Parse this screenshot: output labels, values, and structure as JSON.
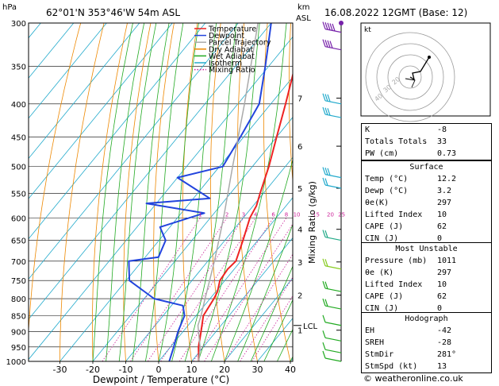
{
  "header": {
    "hpa_label": "hPa",
    "location": "62°01'N  353°46'W  54m  ASL",
    "km_label": "km",
    "asl_label": "ASL",
    "datetime": "16.08.2022  12GMT  (Base: 12)"
  },
  "legend": [
    {
      "label": "Temperature",
      "color": "#ee2222"
    },
    {
      "label": "Dewpoint",
      "color": "#2244dd"
    },
    {
      "label": "Parcel Trajectory",
      "color": "#aaaaaa"
    },
    {
      "label": "Dry Adiabat",
      "color": "#ee8800"
    },
    {
      "label": "Wet Adiabat",
      "color": "#22aa22"
    },
    {
      "label": "Isotherm",
      "color": "#22aacc"
    },
    {
      "label": "Mixing Ratio",
      "color": "#cc2299"
    }
  ],
  "colors": {
    "temperature": "#ee2222",
    "dewpoint": "#2244dd",
    "parcel": "#aaaaaa",
    "dry_adiabat": "#ee8800",
    "wet_adiabat": "#22aa22",
    "isotherm": "#22aacc",
    "mixing_ratio": "#cc2299"
  },
  "chart_data": {
    "type": "line",
    "subtype": "skew-T log-P diagram",
    "xlabel": "Dewpoint / Temperature (°C)",
    "ylabel_right": "Mixing Ratio (g/kg)",
    "x_ticks": [
      -30,
      -20,
      -10,
      0,
      10,
      20,
      30,
      40
    ],
    "pressure_ticks": [
      300,
      350,
      400,
      450,
      500,
      550,
      600,
      650,
      700,
      750,
      800,
      850,
      900,
      950,
      1000
    ],
    "km_ticks": [
      {
        "label": "7",
        "p": 392
      },
      {
        "label": "6",
        "p": 465
      },
      {
        "label": "5",
        "p": 540
      },
      {
        "label": "4",
        "p": 625
      },
      {
        "label": "3",
        "p": 702
      },
      {
        "label": "2",
        "p": 790
      },
      {
        "label": "1",
        "p": 895
      }
    ],
    "lcl": {
      "label": "LCL",
      "p": 880
    },
    "mixing_ratio_labels": [
      "1",
      "2",
      "3",
      "4",
      "6",
      "8",
      "10",
      "15",
      "20",
      "25"
    ],
    "series": [
      {
        "name": "Temperature",
        "points": [
          [
            1000,
            12.2
          ],
          [
            950,
            8.5
          ],
          [
            900,
            5.5
          ],
          [
            850,
            2.2
          ],
          [
            800,
            1.2
          ],
          [
            780,
            0.5
          ],
          [
            750,
            -1.5
          ],
          [
            720,
            -2.0
          ],
          [
            700,
            -1.5
          ],
          [
            650,
            -4.5
          ],
          [
            600,
            -8.0
          ],
          [
            575,
            -9.0
          ],
          [
            550,
            -11.0
          ],
          [
            500,
            -15.0
          ],
          [
            450,
            -20.0
          ],
          [
            400,
            -25.5
          ],
          [
            350,
            -32.0
          ],
          [
            300,
            -40.0
          ]
        ]
      },
      {
        "name": "Dewpoint",
        "points": [
          [
            1000,
            3.2
          ],
          [
            950,
            1.0
          ],
          [
            900,
            -1.5
          ],
          [
            850,
            -3.5
          ],
          [
            820,
            -6.5
          ],
          [
            800,
            -17.0
          ],
          [
            750,
            -29.0
          ],
          [
            700,
            -34.0
          ],
          [
            690,
            -26.0
          ],
          [
            650,
            -28.0
          ],
          [
            620,
            -33.0
          ],
          [
            590,
            -23.0
          ],
          [
            570,
            -43.0
          ],
          [
            560,
            -25.0
          ],
          [
            520,
            -40.0
          ],
          [
            500,
            -29.0
          ],
          [
            450,
            -31.0
          ],
          [
            400,
            -33.5
          ],
          [
            350,
            -41.0
          ],
          [
            300,
            -50.0
          ]
        ]
      },
      {
        "name": "Parcel Trajectory",
        "points": [
          [
            1000,
            12.2
          ],
          [
            950,
            9.0
          ],
          [
            880,
            3.0
          ],
          [
            850,
            1.5
          ],
          [
            800,
            -1.5
          ],
          [
            700,
            -8.0
          ],
          [
            600,
            -16.0
          ],
          [
            500,
            -26.0
          ],
          [
            400,
            -38.0
          ],
          [
            300,
            -54.0
          ]
        ]
      }
    ]
  },
  "hodograph": {
    "unit_label": "kt",
    "ring_labels": [
      "40",
      "30",
      "20"
    ]
  },
  "indices": [
    {
      "label": "K",
      "value": "-8"
    },
    {
      "label": "Totals Totals",
      "value": "33"
    },
    {
      "label": "PW (cm)",
      "value": "0.73"
    }
  ],
  "surface": {
    "title": "Surface",
    "rows": [
      {
        "label": "Temp (°C)",
        "value": "12.2"
      },
      {
        "label": "Dewp (°C)",
        "value": "3.2"
      },
      {
        "label": "θe(K)",
        "value": "297"
      },
      {
        "label": "Lifted Index",
        "value": "10"
      },
      {
        "label": "CAPE (J)",
        "value": "62"
      },
      {
        "label": "CIN (J)",
        "value": "0"
      }
    ]
  },
  "most_unstable": {
    "title": "Most Unstable",
    "rows": [
      {
        "label": "Pressure (mb)",
        "value": "1011"
      },
      {
        "label": "θe (K)",
        "value": "297"
      },
      {
        "label": "Lifted Index",
        "value": "10"
      },
      {
        "label": "CAPE (J)",
        "value": "62"
      },
      {
        "label": "CIN (J)",
        "value": "0"
      }
    ]
  },
  "hodograph_table": {
    "title": "Hodograph",
    "rows": [
      {
        "label": "EH",
        "value": "-42"
      },
      {
        "label": "SREH",
        "value": "-28"
      },
      {
        "label": "StmDir",
        "value": "281°"
      },
      {
        "label": "StmSpd (kt)",
        "value": "13"
      }
    ]
  },
  "footer": "© weatheronline.co.uk"
}
